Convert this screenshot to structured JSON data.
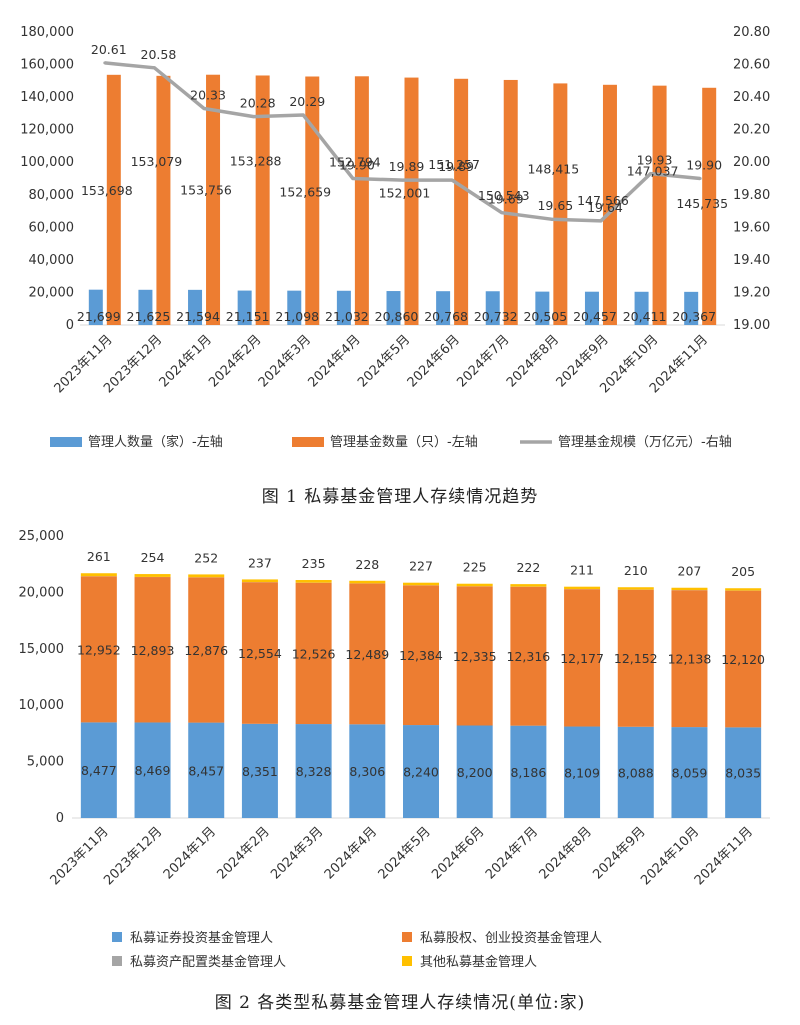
{
  "chart_data": [
    {
      "type": "bar",
      "caption": "图 1  私募基金管理人存续情况趋势",
      "categories": [
        "2023年11月",
        "2023年12月",
        "2024年1月",
        "2024年2月",
        "2024年3月",
        "2024年4月",
        "2024年5月",
        "2024年6月",
        "2024年7月",
        "2024年8月",
        "2024年9月",
        "2024年10月",
        "2024年11月"
      ],
      "y_left_ticks": [
        "0",
        "20,000",
        "40,000",
        "60,000",
        "80,000",
        "100,000",
        "120,000",
        "140,000",
        "160,000",
        "180,000"
      ],
      "y_left_range": [
        0,
        180000
      ],
      "y_right_ticks": [
        "19.00",
        "19.20",
        "19.40",
        "19.60",
        "19.80",
        "20.00",
        "20.20",
        "20.40",
        "20.60",
        "20.80"
      ],
      "y_right_range": [
        19.0,
        20.8
      ],
      "series": [
        {
          "name": "管理人数量（家）-左轴",
          "kind": "bar",
          "axis": "left",
          "color": "#5B9BD5",
          "values": [
            21699,
            21625,
            21594,
            21151,
            21098,
            21032,
            20860,
            20768,
            20732,
            20505,
            20457,
            20411,
            20367
          ],
          "labels": [
            "21,699",
            "21,625",
            "21,594",
            "21,151",
            "21,098",
            "21,032",
            "20,860",
            "20,768",
            "20,732",
            "20,505",
            "20,457",
            "20,411",
            "20,367"
          ]
        },
        {
          "name": "管理基金数量（只）-左轴",
          "kind": "bar",
          "axis": "left",
          "color": "#ED7D31",
          "values": [
            153698,
            153079,
            153756,
            153288,
            152659,
            152794,
            152001,
            151257,
            150543,
            148415,
            147566,
            147037,
            145735
          ],
          "labels": [
            "153,698",
            "153,079",
            "153,756",
            "153,288",
            "152,659",
            "152,794",
            "152,001",
            "151,257",
            "150,543",
            "148,415",
            "147,566",
            "147,037",
            "145,735"
          ]
        },
        {
          "name": "管理基金规模（万亿元）-右轴",
          "kind": "line",
          "axis": "right",
          "color": "#A5A5A5",
          "values": [
            20.61,
            20.58,
            20.33,
            20.28,
            20.29,
            19.9,
            19.89,
            19.89,
            19.69,
            19.65,
            19.64,
            19.93,
            19.9
          ],
          "labels": [
            "20.61",
            "20.58",
            "20.33",
            "20.28",
            "20.29",
            "19.90",
            "19.89",
            "19.89",
            "19.69",
            "19.65",
            "19.64",
            "19.93",
            "19.90"
          ]
        }
      ]
    },
    {
      "type": "bar",
      "stacked": true,
      "caption": "图 2  各类型私募基金管理人存续情况(单位:家)",
      "categories": [
        "2023年11月",
        "2023年12月",
        "2024年1月",
        "2024年2月",
        "2024年3月",
        "2024年4月",
        "2024年5月",
        "2024年6月",
        "2024年7月",
        "2024年8月",
        "2024年9月",
        "2024年10月",
        "2024年11月"
      ],
      "y_ticks": [
        "0",
        "5,000",
        "10,000",
        "15,000",
        "20,000",
        "25,000"
      ],
      "y_range": [
        0,
        25000
      ],
      "series": [
        {
          "name": "私募证券投资基金管理人",
          "color": "#5B9BD5",
          "values": [
            8477,
            8469,
            8457,
            8351,
            8328,
            8306,
            8240,
            8200,
            8186,
            8109,
            8088,
            8059,
            8035
          ],
          "labels": [
            "8,477",
            "8,469",
            "8,457",
            "8,351",
            "8,328",
            "8,306",
            "8,240",
            "8,200",
            "8,186",
            "8,109",
            "8,088",
            "8,059",
            "8,035"
          ]
        },
        {
          "name": "私募股权、创业投资基金管理人",
          "color": "#ED7D31",
          "values": [
            12952,
            12893,
            12876,
            12554,
            12526,
            12489,
            12384,
            12335,
            12316,
            12177,
            12152,
            12138,
            12120
          ],
          "labels": [
            "12,952",
            "12,893",
            "12,876",
            "12,554",
            "12,526",
            "12,489",
            "12,384",
            "12,335",
            "12,316",
            "12,177",
            "12,152",
            "12,138",
            "12,120"
          ]
        },
        {
          "name": "私募资产配置类基金管理人",
          "color": "#A5A5A5",
          "values": [
            9,
            9,
            9,
            9,
            9,
            9,
            9,
            9,
            9,
            9,
            9,
            9,
            9
          ],
          "labels": []
        },
        {
          "name": "其他私募基金管理人",
          "color": "#FFC000",
          "values": [
            261,
            254,
            252,
            237,
            235,
            228,
            227,
            225,
            222,
            211,
            210,
            207,
            205
          ],
          "labels": [
            "261",
            "254",
            "252",
            "237",
            "235",
            "228",
            "227",
            "225",
            "222",
            "211",
            "210",
            "207",
            "205"
          ]
        }
      ]
    }
  ]
}
